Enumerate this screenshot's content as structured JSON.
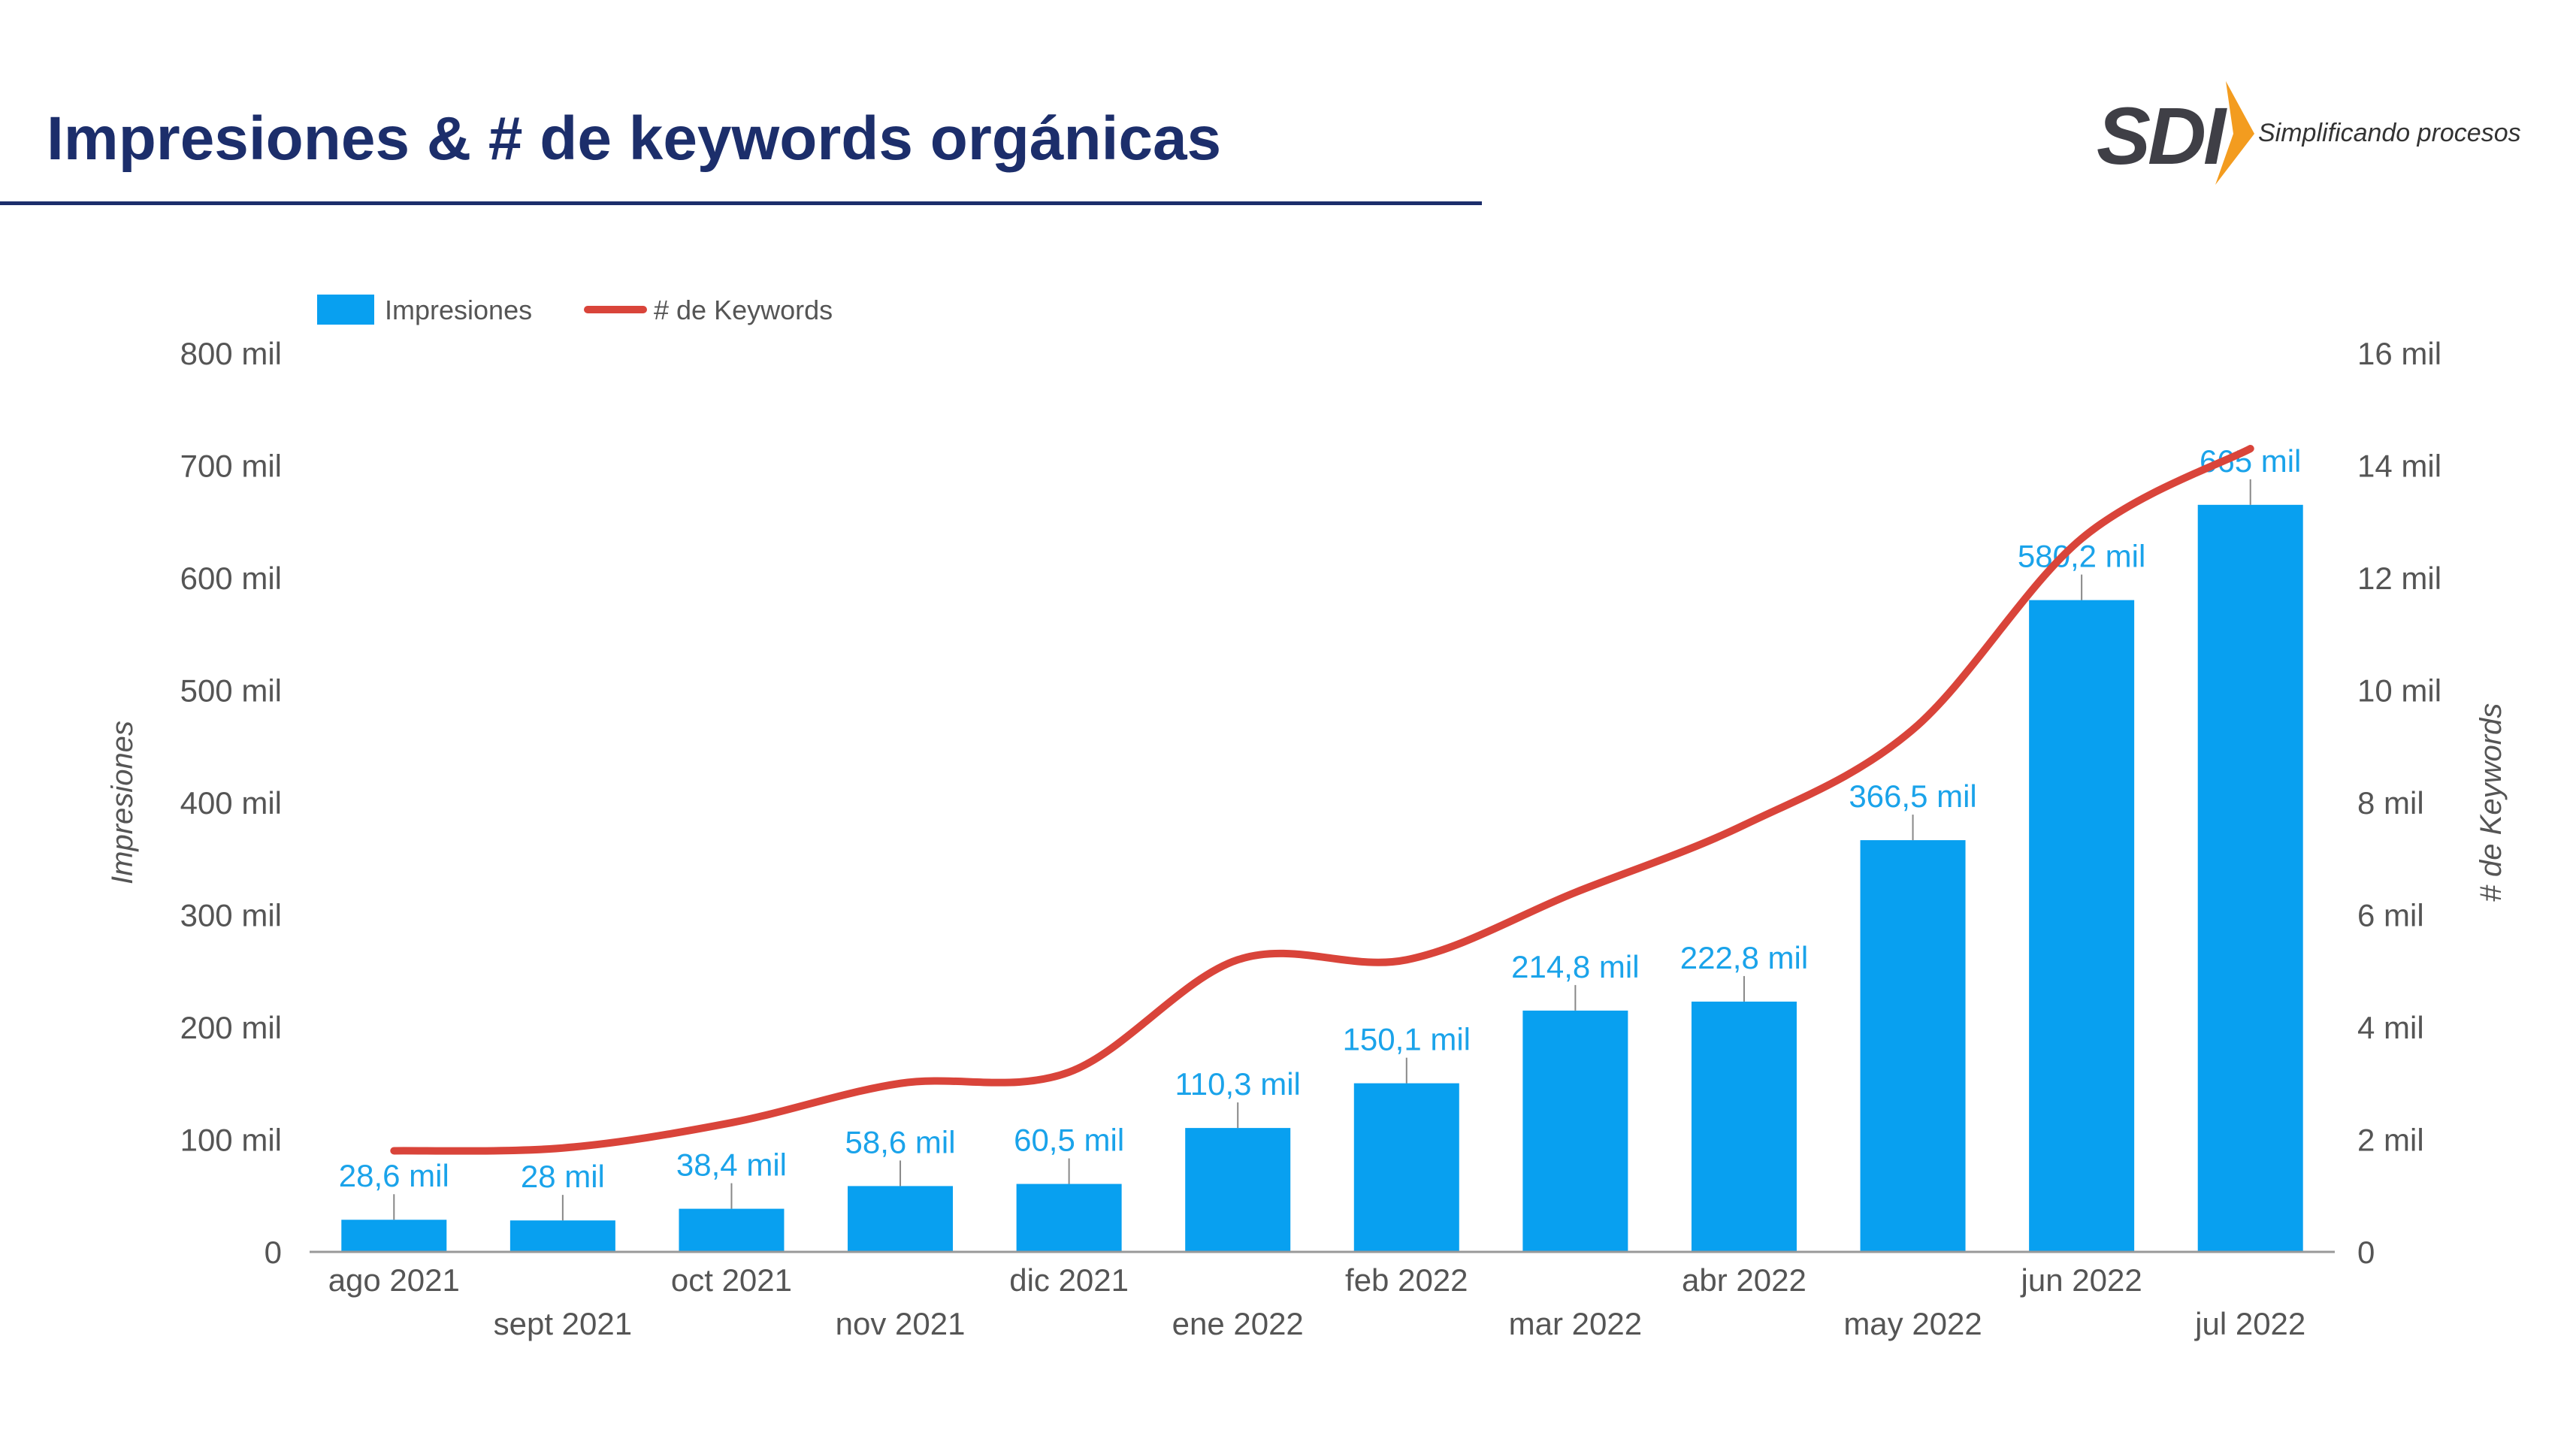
{
  "page": {
    "title": "Impresiones & # de keywords orgánicas"
  },
  "logo": {
    "letters": "SDI",
    "tagline": "Simplificando procesos",
    "icon": "sdi-arrow-logo-icon",
    "colors": {
      "letters": "#3f3f46",
      "arrow": "#f39c1f"
    }
  },
  "colors": {
    "title": "#1c2e6b",
    "bars": "#08a0f0",
    "line": "#d9443a",
    "data_labels": "#1aa3ea"
  },
  "chart_data": {
    "type": "bar",
    "title": "",
    "categories": [
      "ago 2021",
      "sept 2021",
      "oct 2021",
      "nov 2021",
      "dic 2021",
      "ene 2022",
      "feb 2022",
      "mar 2022",
      "abr 2022",
      "may 2022",
      "jun 2022",
      "jul 2022"
    ],
    "series": [
      {
        "name": "Impresiones",
        "type": "bar",
        "axis": "left",
        "values": [
          28.6,
          28,
          38.4,
          58.6,
          60.5,
          110.3,
          150.1,
          214.8,
          222.8,
          366.5,
          580.2,
          665
        ],
        "labels": [
          "28,6 mil",
          "28 mil",
          "38,4 mil",
          "58,6 mil",
          "60,5 mil",
          "110,3 mil",
          "150,1 mil",
          "214,8 mil",
          "222,8 mil",
          "366,5 mil",
          "580,2 mil",
          "665 mil"
        ]
      },
      {
        "name": "# de Keywords",
        "type": "line",
        "axis": "right",
        "values": [
          1.8,
          1.85,
          2.3,
          3.0,
          3.2,
          5.2,
          5.2,
          6.4,
          7.6,
          9.3,
          12.7,
          14.3
        ]
      }
    ],
    "ylabel": "Impresiones",
    "y2label": "# de Keywords",
    "ylim": [
      0,
      800
    ],
    "y2lim": [
      0,
      16
    ],
    "yticks": [
      "0",
      "100 mil",
      "200 mil",
      "300 mil",
      "400 mil",
      "500 mil",
      "600 mil",
      "700 mil",
      "800 mil"
    ],
    "y2ticks": [
      "0",
      "2 mil",
      "4 mil",
      "6 mil",
      "8 mil",
      "10 mil",
      "12 mil",
      "14 mil",
      "16 mil"
    ],
    "value_units": "mil",
    "grid": false,
    "legend": "top-left"
  }
}
